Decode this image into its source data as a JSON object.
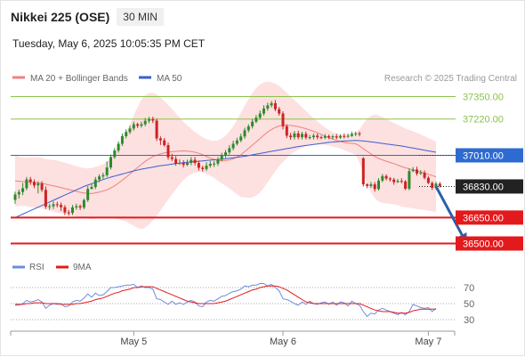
{
  "header": {
    "title": "Nikkei 225 (OSE)",
    "timeframe": "30 MIN",
    "datetime": "Tuesday, May 6, 2025 10:05:35 PM CET"
  },
  "legend": {
    "ma20_label": "MA 20 + Bollinger Bands",
    "ma50_label": "MA 50",
    "copyright": "Research © 2025 Trading Central"
  },
  "colors": {
    "up_candle": "#2d8a2d",
    "down_candle": "#cc2222",
    "bollinger_fill": "#fde0e0",
    "ma20": "#f08080",
    "ma50": "#3a5fcd",
    "resistance": "#8bc34a",
    "support": "#e31a1c",
    "pivot": "#2e6bd1",
    "last_price": "#222222",
    "arrow": "#2d5fa8",
    "rsi": "#6a8fdc",
    "rsi_ma": "#e31a1c"
  },
  "price_levels": [
    {
      "label": "37350.00",
      "value": 37350,
      "kind": "resistance"
    },
    {
      "label": "37220.00",
      "value": 37220,
      "kind": "resistance"
    },
    {
      "label": "37010.00",
      "value": 37010,
      "kind": "pivot"
    },
    {
      "label": "36830.00",
      "value": 36830,
      "kind": "last"
    },
    {
      "label": "36650.00",
      "value": 36650,
      "kind": "support"
    },
    {
      "label": "36500.00",
      "value": 36500,
      "kind": "support"
    }
  ],
  "rsi_panel": {
    "legend_rsi": "RSI",
    "legend_ma": "9MA",
    "levels": [
      {
        "label": "70",
        "value": 70
      },
      {
        "label": "50",
        "value": 50
      },
      {
        "label": "30",
        "value": 30
      }
    ]
  },
  "x_axis": {
    "labels": [
      {
        "label": "May 5",
        "index": 31
      },
      {
        "label": "May 6",
        "index": 70
      },
      {
        "label": "May 7",
        "index": 108
      }
    ]
  },
  "chart_data": {
    "type": "candlestick",
    "y_range": [
      36500,
      37350
    ],
    "forecast": {
      "from_index": 110,
      "from_value": 36830,
      "to_index": 118,
      "to_value": 36500
    },
    "candles": [
      [
        36752,
        36784,
        36730,
        36800
      ],
      [
        36784,
        36798,
        36760,
        36812
      ],
      [
        36798,
        36820,
        36780,
        36850
      ],
      [
        36820,
        36871,
        36808,
        36885
      ],
      [
        36871,
        36856,
        36840,
        36885
      ],
      [
        36856,
        36836,
        36820,
        36870
      ],
      [
        36836,
        36847,
        36790,
        36860
      ],
      [
        36847,
        36810,
        36798,
        36860
      ],
      [
        36810,
        36713,
        36700,
        36830
      ],
      [
        36713,
        36716,
        36695,
        36730
      ],
      [
        36716,
        36727,
        36700,
        36743
      ],
      [
        36727,
        36723,
        36709,
        36742
      ],
      [
        36723,
        36710,
        36688,
        36737
      ],
      [
        36710,
        36680,
        36665,
        36722
      ],
      [
        36680,
        36677,
        36660,
        36693
      ],
      [
        36677,
        36709,
        36665,
        36723
      ],
      [
        36709,
        36716,
        36695,
        36730
      ],
      [
        36716,
        36708,
        36694,
        36726
      ],
      [
        36708,
        36751,
        36698,
        36760
      ],
      [
        36751,
        36816,
        36740,
        36832
      ],
      [
        36816,
        36827,
        36813,
        36848
      ],
      [
        36827,
        36870,
        36815,
        36885
      ],
      [
        36870,
        36888,
        36855,
        36900
      ],
      [
        36888,
        36895,
        36874,
        36910
      ],
      [
        36895,
        36940,
        36885,
        36975
      ],
      [
        36940,
        37000,
        36928,
        37015
      ],
      [
        37000,
        37038,
        36990,
        37052
      ],
      [
        37038,
        37077,
        37026,
        37091
      ],
      [
        37077,
        37121,
        37064,
        37136
      ],
      [
        37121,
        37145,
        37108,
        37160
      ],
      [
        37145,
        37165,
        37133,
        37181
      ],
      [
        37165,
        37190,
        37153,
        37205
      ],
      [
        37190,
        37181,
        37168,
        37199
      ],
      [
        37181,
        37190,
        37170,
        37205
      ],
      [
        37190,
        37210,
        37178,
        37226
      ],
      [
        37210,
        37219,
        37196,
        37233
      ],
      [
        37219,
        37211,
        37197,
        37234
      ],
      [
        37211,
        37108,
        37093,
        37223
      ],
      [
        37108,
        37097,
        37070,
        37120
      ],
      [
        37097,
        37069,
        37060,
        37110
      ],
      [
        37069,
        36999,
        36985,
        37084
      ],
      [
        36999,
        36989,
        36977,
        37019
      ],
      [
        36989,
        36962,
        36950,
        37005
      ],
      [
        36962,
        36966,
        36955,
        36987
      ],
      [
        36966,
        36955,
        36940,
        36982
      ],
      [
        36955,
        36966,
        36948,
        36985
      ],
      [
        36966,
        36984,
        36953,
        37000
      ],
      [
        36984,
        36966,
        36952,
        37001
      ],
      [
        36966,
        36938,
        36922,
        36980
      ],
      [
        36938,
        36931,
        36917,
        36950
      ],
      [
        36931,
        36950,
        36920,
        36970
      ],
      [
        36950,
        36961,
        36939,
        36977
      ],
      [
        36961,
        36962,
        36943,
        36978
      ],
      [
        36962,
        36985,
        36949,
        37000
      ],
      [
        36985,
        37008,
        36975,
        37025
      ],
      [
        37008,
        37027,
        36995,
        37041
      ],
      [
        37027,
        37051,
        37015,
        37068
      ],
      [
        37051,
        37077,
        37038,
        37095
      ],
      [
        37077,
        37096,
        37067,
        37112
      ],
      [
        37096,
        37119,
        37086,
        37135
      ],
      [
        37119,
        37155,
        37106,
        37170
      ],
      [
        37155,
        37178,
        37143,
        37190
      ],
      [
        37178,
        37205,
        37165,
        37220
      ],
      [
        37205,
        37228,
        37196,
        37244
      ],
      [
        37228,
        37252,
        37216,
        37270
      ],
      [
        37252,
        37281,
        37240,
        37300
      ],
      [
        37281,
        37299,
        37268,
        37315
      ],
      [
        37299,
        37312,
        37287,
        37325
      ],
      [
        37312,
        37277,
        37265,
        37330
      ],
      [
        37277,
        37252,
        37240,
        37290
      ],
      [
        37252,
        37178,
        37160,
        37265
      ],
      [
        37178,
        37124,
        37110,
        37190
      ],
      [
        37124,
        37115,
        37100,
        37140
      ],
      [
        37115,
        37137,
        37102,
        37151
      ],
      [
        37137,
        37115,
        37103,
        37152
      ],
      [
        37115,
        37134,
        37102,
        37146
      ],
      [
        37134,
        37113,
        37102,
        37148
      ],
      [
        37113,
        37115,
        37102,
        37128
      ],
      [
        37115,
        37124,
        37102,
        37136
      ],
      [
        37124,
        37115,
        37103,
        37136
      ],
      [
        37115,
        37112,
        37104,
        37124
      ],
      [
        37112,
        37121,
        37104,
        37133
      ],
      [
        37121,
        37114,
        37104,
        37130
      ],
      [
        37114,
        37120,
        37104,
        37128
      ],
      [
        37120,
        37113,
        37103,
        37134
      ],
      [
        37113,
        37122,
        37105,
        37132
      ],
      [
        37122,
        37121,
        37108,
        37137
      ],
      [
        37121,
        37123,
        37111,
        37136
      ],
      [
        37123,
        37134,
        37117,
        37147
      ],
      [
        37134,
        37137,
        37121,
        37147
      ],
      [
        37137,
        37133,
        37120,
        37148
      ],
      [
        36993,
        36842,
        36830,
        37000
      ],
      [
        36842,
        36833,
        36820,
        36848
      ],
      [
        36833,
        36842,
        36822,
        36856
      ],
      [
        36842,
        36815,
        36800,
        36855
      ],
      [
        36815,
        36864,
        36806,
        36878
      ],
      [
        36864,
        36890,
        36855,
        36902
      ],
      [
        36890,
        36876,
        36865,
        36900
      ],
      [
        36876,
        36870,
        36858,
        36884
      ],
      [
        36870,
        36855,
        36840,
        36880
      ],
      [
        36855,
        36862,
        36850,
        36874
      ],
      [
        36862,
        36859,
        36848,
        36878
      ],
      [
        36859,
        36817,
        36809,
        36867
      ],
      [
        36817,
        36919,
        36808,
        36934
      ],
      [
        36919,
        36928,
        36913,
        36942
      ],
      [
        36928,
        36905,
        36893,
        36944
      ],
      [
        36905,
        36910,
        36897,
        36925
      ],
      [
        36910,
        36880,
        36871,
        36923
      ],
      [
        36880,
        36850,
        36844,
        36890
      ],
      [
        36850,
        36822,
        36810,
        36860
      ],
      [
        36822,
        36846,
        36811,
        36858
      ],
      [
        36846,
        36832,
        36823,
        36856
      ]
    ],
    "ma20": [
      36862,
      36860,
      36858,
      36856,
      36855,
      36853,
      36851,
      36849,
      36843,
      36838,
      36834,
      36829,
      36824,
      36818,
      36812,
      36807,
      36802,
      36796,
      36792,
      36790,
      36789,
      36793,
      36798,
      36803,
      36810,
      36821,
      36834,
      36850,
      36866,
      36884,
      36902,
      36922,
      36940,
      36958,
      36975,
      36990,
      37003,
      37011,
      37018,
      37024,
      37028,
      37031,
      37033,
      37035,
      37036,
      37035,
      37032,
      37028,
      37022,
      37014,
      37003,
      36994,
      36987,
      36980,
      36978,
      36979,
      36983,
      36990,
      37000,
      37013,
      37032,
      37050,
      37069,
      37088,
      37107,
      37127,
      37145,
      37160,
      37172,
      37180,
      37183,
      37183,
      37183,
      37180,
      37176,
      37170,
      37164,
      37157,
      37149,
      37141,
      37131,
      37121,
      37112,
      37103,
      37096,
      37090,
      37085,
      37081,
      37079,
      37077,
      37065,
      37048,
      37033,
      37018,
      37004,
      36992,
      36984,
      36976,
      36969,
      36962,
      36954,
      36945,
      36938,
      36932,
      36926,
      36920,
      36914,
      36907,
      36900,
      36893,
      36886
    ],
    "ma50": [
      36650,
      36660,
      36670,
      36680,
      36690,
      36700,
      36710,
      36720,
      36730,
      36740,
      36750,
      36760,
      36770,
      36780,
      36790,
      36800,
      36810,
      36820,
      36830,
      36838,
      36846,
      36854,
      36862,
      36870,
      36877,
      36884,
      36890,
      36896,
      36902,
      36908,
      36914,
      36920,
      36925,
      36930,
      36934,
      36938,
      36942,
      36946,
      36950,
      36953,
      36956,
      36959,
      36962,
      36965,
      36968,
      36970,
      36972,
      36974,
      36976,
      36978,
      36980,
      36982,
      36984,
      36986,
      36988,
      36990,
      36993,
      36996,
      36999,
      37002,
      37005,
      37009,
      37013,
      37017,
      37021,
      37025,
      37029,
      37033,
      37037,
      37041,
      37045,
      37049,
      37053,
      37057,
      37061,
      37064,
      37067,
      37070,
      37073,
      37076,
      37079,
      37082,
      37085,
      37087,
      37089,
      37091,
      37093,
      37094,
      37095,
      37096,
      37095,
      37093,
      37091,
      37088,
      37085,
      37082,
      37079,
      37076,
      37073,
      37070,
      37067,
      37064,
      37060,
      37056,
      37052,
      37048,
      37044,
      37040,
      37036,
      37032,
      37028
    ],
    "bollinger_upper": [
      37012,
      37003,
      36998,
      36996,
      36999,
      37000,
      36998,
      36995,
      36989,
      36985,
      36983,
      36980,
      36974,
      36967,
      36961,
      36954,
      36948,
      36941,
      36937,
      36935,
      36937,
      36943,
      36950,
      36960,
      36974,
      36995,
      37024,
      37060,
      37098,
      37141,
      37190,
      37242,
      37290,
      37332,
      37358,
      37370,
      37372,
      37363,
      37346,
      37324,
      37302,
      37278,
      37253,
      37228,
      37204,
      37183,
      37164,
      37146,
      37130,
      37115,
      37103,
      37096,
      37094,
      37097,
      37108,
      37124,
      37148,
      37178,
      37216,
      37256,
      37297,
      37336,
      37371,
      37399,
      37420,
      37432,
      37436,
      37433,
      37425,
      37412,
      37393,
      37372,
      37350,
      37330,
      37309,
      37288,
      37266,
      37246,
      37226,
      37207,
      37188,
      37172,
      37157,
      37144,
      37136,
      37131,
      37129,
      37131,
      37135,
      37140,
      37162,
      37193,
      37222,
      37240,
      37246,
      37242,
      37232,
      37220,
      37209,
      37197,
      37186,
      37176,
      37166,
      37157,
      37149,
      37140,
      37131,
      37121,
      37110,
      37100,
      37090
    ],
    "bollinger_lower": [
      36712,
      36717,
      36718,
      36716,
      36711,
      36706,
      36704,
      36703,
      36697,
      36691,
      36685,
      36678,
      36674,
      36669,
      36663,
      36660,
      36656,
      36651,
      36647,
      36645,
      36641,
      36643,
      36646,
      36646,
      36646,
      36647,
      36644,
      36640,
      36634,
      36627,
      36614,
      36602,
      36590,
      36584,
      36592,
      36610,
      36634,
      36659,
      36690,
      36724,
      36754,
      36784,
      36813,
      36842,
      36868,
      36887,
      36900,
      36910,
      36914,
      36913,
      36903,
      36892,
      36880,
      36863,
      36848,
      36834,
      36818,
      36802,
      36784,
      36770,
      36767,
      36764,
      36767,
      36777,
      36794,
      36822,
      36854,
      36887,
      36919,
      36948,
      36973,
      36994,
      37016,
      37030,
      37043,
      37052,
      37062,
      37068,
      37072,
      37075,
      37074,
      37070,
      37067,
      37062,
      37056,
      37049,
      37041,
      37031,
      37023,
      37014,
      36968,
      36903,
      36844,
      36796,
      36762,
      36742,
      36736,
      36732,
      36729,
      36727,
      36722,
      36714,
      36710,
      36707,
      36703,
      36700,
      36697,
      36693,
      36690,
      36686,
      36682
    ],
    "rsi": [
      48,
      48,
      50,
      54,
      52,
      53,
      55,
      52,
      44,
      48,
      50,
      49,
      50,
      46,
      47,
      52,
      54,
      53,
      57,
      62,
      58,
      63,
      60,
      61,
      65,
      70,
      70,
      71,
      72,
      73,
      73,
      74,
      70,
      72,
      70,
      70,
      68,
      56,
      55,
      52,
      49,
      53,
      49,
      51,
      49,
      52,
      54,
      52,
      47,
      46,
      52,
      54,
      53,
      56,
      59,
      60,
      63,
      65,
      66,
      68,
      72,
      71,
      73,
      73,
      75,
      75,
      72,
      74,
      70,
      66,
      56,
      55,
      53,
      50,
      48,
      52,
      49,
      53,
      50,
      49,
      51,
      52,
      49,
      52,
      48,
      52,
      51,
      47,
      53,
      50,
      48,
      40,
      34,
      38,
      37,
      42,
      44,
      42,
      40,
      38,
      36,
      39,
      36,
      40,
      49,
      47,
      45,
      44,
      45,
      40,
      44
    ],
    "rsi_ma": [
      49,
      49,
      49,
      50,
      50,
      51,
      51,
      51,
      50,
      50,
      50,
      50,
      49,
      49,
      49,
      49,
      50,
      50,
      51,
      52,
      53,
      55,
      56,
      57,
      59,
      61,
      63,
      64,
      66,
      67,
      68,
      70,
      70,
      71,
      71,
      71,
      71,
      69,
      67,
      65,
      63,
      61,
      59,
      57,
      55,
      53,
      52,
      51,
      50,
      50,
      50,
      50,
      50,
      51,
      52,
      53,
      55,
      57,
      59,
      61,
      63,
      65,
      67,
      68,
      70,
      71,
      72,
      72,
      72,
      71,
      69,
      67,
      64,
      61,
      58,
      55,
      52,
      51,
      50,
      50,
      50,
      50,
      50,
      50,
      50,
      50,
      50,
      50,
      50,
      50,
      50,
      48,
      46,
      44,
      42,
      41,
      40,
      40,
      40,
      39,
      38,
      38,
      38,
      39,
      41,
      42,
      43,
      43,
      43,
      43,
      43
    ]
  }
}
